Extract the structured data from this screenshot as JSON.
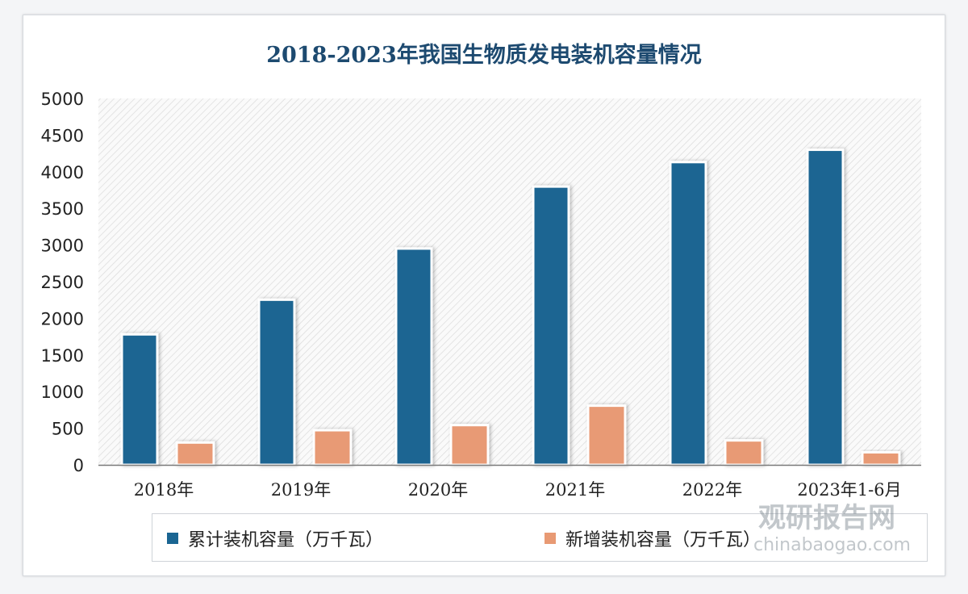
{
  "chart_data": {
    "type": "bar",
    "title": "2018-2023年我国生物质发电装机容量情况",
    "categories": [
      "2018年",
      "2019年",
      "2020年",
      "2021年",
      "2022年",
      "2023年1-6月"
    ],
    "series": [
      {
        "name": "累计装机容量（万千瓦）",
        "color": "#1a6592",
        "values": [
          1781,
          2254,
          2952,
          3798,
          4132,
          4300
        ]
      },
      {
        "name": "新增装机容量（万千瓦）",
        "color": "#e89a74",
        "values": [
          305,
          473,
          543,
          808,
          334,
          172
        ]
      }
    ],
    "xlabel": "",
    "ylabel": "",
    "ylim": [
      0,
      5000
    ],
    "yticks": [
      "0",
      "500",
      "1000",
      "1500",
      "2000",
      "2500",
      "3000",
      "3500",
      "4000",
      "4500",
      "5000"
    ],
    "grid": false,
    "legend": "bottom"
  },
  "watermark": {
    "cn": "观研报告网",
    "en": "chinabaogao.com"
  }
}
